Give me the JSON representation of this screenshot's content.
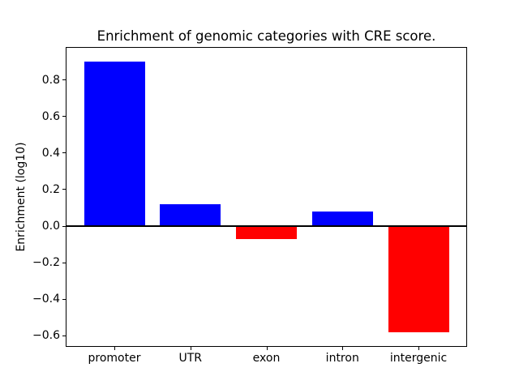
{
  "chart_data": {
    "type": "bar",
    "title": "Enrichment of genomic categories with CRE score.",
    "xlabel": "",
    "ylabel": "Enrichment (log10)",
    "categories": [
      "promoter",
      "UTR",
      "exon",
      "intron",
      "intergenic"
    ],
    "values": [
      0.9,
      0.12,
      -0.07,
      0.08,
      -0.58
    ],
    "positive_color": "#0000ff",
    "negative_color": "#ff0000",
    "axis_color": "#000000",
    "background_color": "#ffffff",
    "yticks": [
      -0.6,
      -0.4,
      -0.2,
      0.0,
      0.2,
      0.4,
      0.6,
      0.8
    ],
    "ytick_labels": [
      "−0.6",
      "−0.4",
      "−0.2",
      "0.0",
      "0.2",
      "0.4",
      "0.6",
      "0.8"
    ],
    "ylim": [
      -0.66,
      0.98
    ],
    "xlim": [
      -0.64,
      4.64
    ],
    "bar_width": 0.8,
    "zero_line": true,
    "grid": false,
    "legend": null
  }
}
